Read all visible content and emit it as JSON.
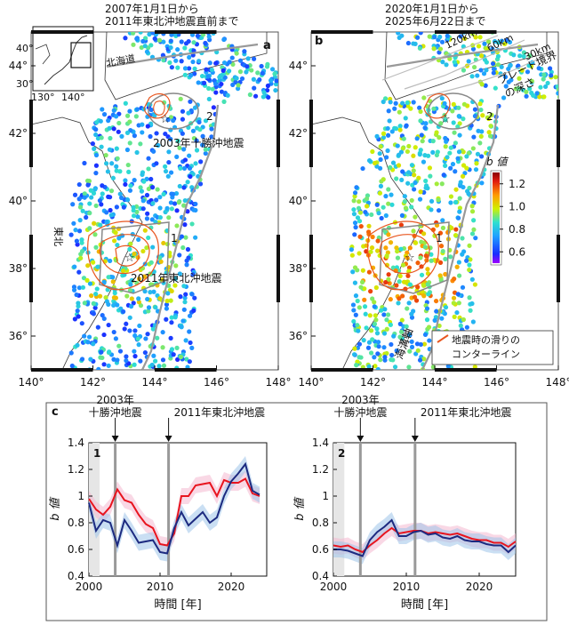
{
  "colors": {
    "slip": "#e8561f",
    "trench": "#999999",
    "series_red": "#e8141e",
    "series_blue": "#1c2a80",
    "band_red": "#f4b8cf",
    "band_blue": "#9ec4ea",
    "event_line": "#999999",
    "shade": "#e6e6e6"
  },
  "maps": {
    "lon_ticks": [
      "140°",
      "142°",
      "144°",
      "146°",
      "148°"
    ],
    "lat_ticks": [
      "36°",
      "38°",
      "40°",
      "42°",
      "44°"
    ],
    "panel_a": {
      "letter": "a",
      "title_line1": "2007年1月1日から",
      "title_line2": "2011年東北沖地震直前まで",
      "label_hokkaido": "北海道",
      "label_tokachi": "2003年十勝沖地震",
      "label_tohoku_eq": "2011年東北沖地震",
      "label_tohoku_region": "東北",
      "region_1": "1",
      "region_2": "2"
    },
    "panel_b": {
      "letter": "b",
      "title_line1": "2020年1月1日から",
      "title_line2": "2025年6月22日まで",
      "depth_120": "120km",
      "depth_60": "60km",
      "depth_30": "30km",
      "plate_label_1": "プレート境界",
      "plate_label_2": "の深さ",
      "trench_label": "海溝軸",
      "region_1": "1",
      "region_2": "2",
      "legend_line1": "地震時の滑りの",
      "legend_line2": "コンターライン"
    },
    "inset": {
      "lat_ticks": [
        "40°",
        "30°"
      ],
      "lon_ticks": [
        "130°",
        "140°"
      ]
    },
    "colorbar": {
      "title": "b 値",
      "ticks": [
        "1.2",
        "1.0",
        "0.8",
        "0.6"
      ],
      "range": [
        0.5,
        1.3
      ]
    }
  },
  "chart_data": [
    {
      "type": "line",
      "panel": "c",
      "letter": "c",
      "region": "1",
      "xlabel": "時間 [年]",
      "ylabel": "b 値",
      "xlim": [
        2000,
        2025
      ],
      "ylim": [
        0.4,
        1.4
      ],
      "xticks": [
        "2000",
        "2010",
        "2020"
      ],
      "yticks": [
        "0.4",
        "0.6",
        "0.8",
        "1",
        "1.2",
        "1.4"
      ],
      "events": [
        {
          "year": 2003.7,
          "label_line1": "2003年",
          "label_line2": "十勝沖地震"
        },
        {
          "year": 2011.2,
          "label_line1": "2011年東北沖地震",
          "label_line2": ""
        }
      ],
      "series": [
        {
          "name": "red",
          "x": [
            2000,
            2001,
            2002,
            2003,
            2004,
            2005,
            2006,
            2007,
            2008,
            2009,
            2010,
            2011,
            2012,
            2013,
            2014,
            2015,
            2016,
            2017,
            2018,
            2019,
            2020,
            2021,
            2022,
            2023,
            2024
          ],
          "values": [
            0.98,
            0.9,
            0.86,
            0.92,
            1.05,
            0.97,
            0.95,
            0.86,
            0.79,
            0.76,
            0.64,
            0.63,
            0.72,
            1.0,
            1.0,
            1.08,
            1.09,
            1.1,
            1.0,
            1.12,
            1.1,
            1.1,
            1.13,
            1.02,
            1.0
          ]
        },
        {
          "name": "blue",
          "x": [
            2000,
            2001,
            2002,
            2003,
            2004,
            2005,
            2006,
            2007,
            2008,
            2009,
            2010,
            2011,
            2012,
            2013,
            2014,
            2015,
            2016,
            2017,
            2018,
            2019,
            2020,
            2021,
            2022,
            2023,
            2024
          ],
          "values": [
            0.95,
            0.74,
            0.82,
            0.8,
            0.63,
            0.82,
            0.74,
            0.65,
            0.66,
            0.67,
            0.58,
            0.57,
            0.76,
            0.88,
            0.78,
            0.83,
            0.88,
            0.8,
            0.84,
            1.0,
            1.11,
            1.17,
            1.24,
            1.04,
            1.01
          ]
        }
      ]
    },
    {
      "type": "line",
      "panel": "c",
      "region": "2",
      "xlabel": "時間 [年]",
      "ylabel": "b 値",
      "xlim": [
        2000,
        2025
      ],
      "ylim": [
        0.4,
        1.4
      ],
      "xticks": [
        "2000",
        "2010",
        "2020"
      ],
      "yticks": [
        "0.4",
        "0.6",
        "0.8",
        "1",
        "1.2",
        "1.4"
      ],
      "events": [
        {
          "year": 2003.7,
          "label_line1": "2003年",
          "label_line2": "十勝沖地震"
        },
        {
          "year": 2011.2,
          "label_line1": "2011年東北沖地震",
          "label_line2": ""
        }
      ],
      "series": [
        {
          "name": "red",
          "x": [
            2000,
            2001,
            2002,
            2003,
            2004,
            2005,
            2006,
            2007,
            2008,
            2009,
            2010,
            2011,
            2012,
            2013,
            2014,
            2015,
            2016,
            2017,
            2018,
            2019,
            2020,
            2021,
            2022,
            2023,
            2024,
            2025
          ],
          "values": [
            0.63,
            0.62,
            0.63,
            0.6,
            0.58,
            0.63,
            0.67,
            0.72,
            0.76,
            0.72,
            0.73,
            0.74,
            0.74,
            0.72,
            0.73,
            0.72,
            0.71,
            0.72,
            0.7,
            0.68,
            0.67,
            0.67,
            0.65,
            0.65,
            0.62,
            0.66
          ]
        },
        {
          "name": "blue",
          "x": [
            2000,
            2001,
            2002,
            2003,
            2004,
            2005,
            2006,
            2007,
            2008,
            2009,
            2010,
            2011,
            2012,
            2013,
            2014,
            2015,
            2016,
            2017,
            2018,
            2019,
            2020,
            2021,
            2022,
            2023,
            2024,
            2025
          ],
          "values": [
            0.6,
            0.6,
            0.59,
            0.57,
            0.55,
            0.67,
            0.73,
            0.77,
            0.82,
            0.7,
            0.7,
            0.73,
            0.74,
            0.71,
            0.72,
            0.69,
            0.68,
            0.7,
            0.67,
            0.66,
            0.66,
            0.64,
            0.63,
            0.63,
            0.58,
            0.63
          ]
        }
      ]
    }
  ]
}
